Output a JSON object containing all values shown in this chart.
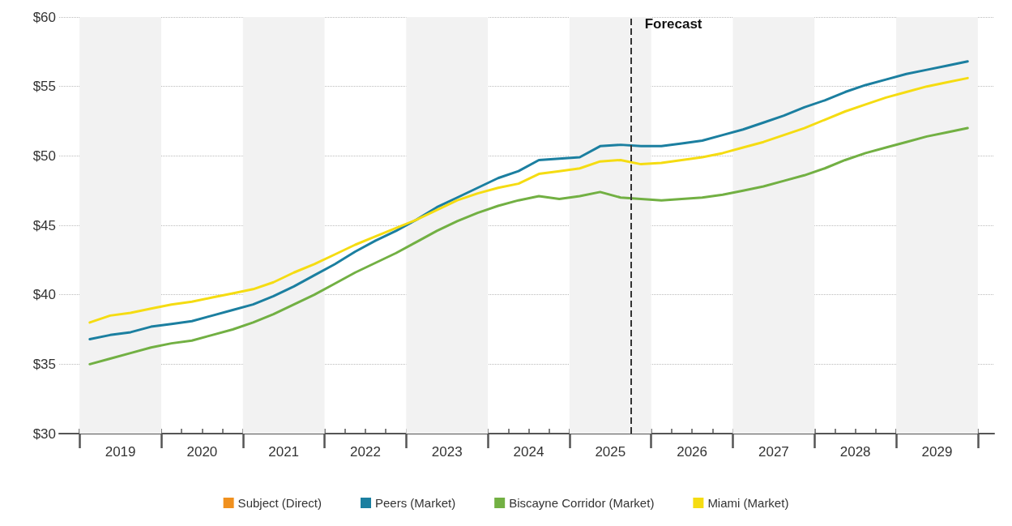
{
  "chart_data": {
    "type": "line",
    "x": [
      2019.125,
      2019.375,
      2019.625,
      2019.875,
      2020.125,
      2020.375,
      2020.625,
      2020.875,
      2021.125,
      2021.375,
      2021.625,
      2021.875,
      2022.125,
      2022.375,
      2022.625,
      2022.875,
      2023.125,
      2023.375,
      2023.625,
      2023.875,
      2024.125,
      2024.375,
      2024.625,
      2024.875,
      2025.125,
      2025.375,
      2025.625,
      2025.875,
      2026.125,
      2026.375,
      2026.625,
      2026.875,
      2027.125,
      2027.375,
      2027.625,
      2027.875,
      2028.125,
      2028.375,
      2028.625,
      2028.875,
      2029.125,
      2029.375,
      2029.625,
      2029.875
    ],
    "series": [
      {
        "name": "Subject (Direct)",
        "color": "#f0901e",
        "values": [
          null,
          null,
          null,
          null,
          null,
          null,
          null,
          null,
          null,
          null,
          null,
          null,
          null,
          null,
          null,
          null,
          null,
          null,
          null,
          null,
          null,
          null,
          null,
          null,
          null,
          null,
          null,
          null,
          null,
          null,
          null,
          null,
          null,
          null,
          null,
          null,
          null,
          null,
          null,
          null,
          null,
          null,
          null,
          null
        ]
      },
      {
        "name": "Peers (Market)",
        "color": "#1b7fa0",
        "values": [
          36.8,
          37.1,
          37.3,
          37.7,
          37.9,
          38.1,
          38.5,
          38.9,
          39.3,
          39.9,
          40.6,
          41.4,
          42.2,
          43.1,
          43.9,
          44.6,
          45.4,
          46.3,
          47.0,
          47.7,
          48.4,
          48.9,
          49.7,
          49.8,
          49.9,
          50.7,
          50.8,
          50.7,
          50.7,
          50.9,
          51.1,
          51.5,
          51.9,
          52.4,
          52.9,
          53.5,
          54.0,
          54.6,
          55.1,
          55.5,
          55.9,
          56.2,
          56.5,
          56.8
        ]
      },
      {
        "name": "Biscayne Corridor (Market)",
        "color": "#72b043",
        "values": [
          35.0,
          35.4,
          35.8,
          36.2,
          36.5,
          36.7,
          37.1,
          37.5,
          38.0,
          38.6,
          39.3,
          40.0,
          40.8,
          41.6,
          42.3,
          43.0,
          43.8,
          44.6,
          45.3,
          45.9,
          46.4,
          46.8,
          47.1,
          46.9,
          47.1,
          47.4,
          47.0,
          46.9,
          46.8,
          46.9,
          47.0,
          47.2,
          47.5,
          47.8,
          48.2,
          48.6,
          49.1,
          49.7,
          50.2,
          50.6,
          51.0,
          51.4,
          51.7,
          52.0
        ]
      },
      {
        "name": "Miami (Market)",
        "color": "#f5dc12",
        "values": [
          38.0,
          38.5,
          38.7,
          39.0,
          39.3,
          39.5,
          39.8,
          40.1,
          40.4,
          40.9,
          41.6,
          42.2,
          42.9,
          43.6,
          44.2,
          44.8,
          45.4,
          46.1,
          46.8,
          47.3,
          47.7,
          48.0,
          48.7,
          48.9,
          49.1,
          49.6,
          49.7,
          49.4,
          49.5,
          49.7,
          49.9,
          50.2,
          50.6,
          51.0,
          51.5,
          52.0,
          52.6,
          53.2,
          53.7,
          54.2,
          54.6,
          55.0,
          55.3,
          55.6
        ]
      }
    ],
    "xlim": [
      2018.75,
      2030.2
    ],
    "xticks": [
      {
        "value": 2019,
        "label": null
      },
      {
        "value": 2019.25,
        "label": null
      },
      {
        "value": 2019.5,
        "label": "2019"
      },
      {
        "value": 2019.75,
        "label": null
      },
      {
        "value": 2020,
        "label": null
      },
      {
        "value": 2020.25,
        "label": null
      },
      {
        "value": 2020.5,
        "label": "2020"
      },
      {
        "value": 2020.75,
        "label": null
      },
      {
        "value": 2021,
        "label": null
      },
      {
        "value": 2021.25,
        "label": null
      },
      {
        "value": 2021.5,
        "label": "2021"
      },
      {
        "value": 2021.75,
        "label": null
      },
      {
        "value": 2022,
        "label": null
      },
      {
        "value": 2022.25,
        "label": null
      },
      {
        "value": 2022.5,
        "label": "2022"
      },
      {
        "value": 2022.75,
        "label": null
      },
      {
        "value": 2023,
        "label": null
      },
      {
        "value": 2023.25,
        "label": null
      },
      {
        "value": 2023.5,
        "label": "2023"
      },
      {
        "value": 2023.75,
        "label": null
      },
      {
        "value": 2024,
        "label": null
      },
      {
        "value": 2024.25,
        "label": null
      },
      {
        "value": 2024.5,
        "label": "2024"
      },
      {
        "value": 2024.75,
        "label": null
      },
      {
        "value": 2025,
        "label": null
      },
      {
        "value": 2025.25,
        "label": null
      },
      {
        "value": 2025.5,
        "label": "2025"
      },
      {
        "value": 2025.75,
        "label": null
      },
      {
        "value": 2026,
        "label": null
      },
      {
        "value": 2026.25,
        "label": null
      },
      {
        "value": 2026.5,
        "label": "2026"
      },
      {
        "value": 2026.75,
        "label": null
      },
      {
        "value": 2027,
        "label": null
      },
      {
        "value": 2027.25,
        "label": null
      },
      {
        "value": 2027.5,
        "label": "2027"
      },
      {
        "value": 2027.75,
        "label": null
      },
      {
        "value": 2028,
        "label": null
      },
      {
        "value": 2028.25,
        "label": null
      },
      {
        "value": 2028.5,
        "label": "2028"
      },
      {
        "value": 2028.75,
        "label": null
      },
      {
        "value": 2029,
        "label": null
      },
      {
        "value": 2029.25,
        "label": null
      },
      {
        "value": 2029.5,
        "label": "2029"
      },
      {
        "value": 2029.75,
        "label": null
      },
      {
        "value": 2030,
        "label": null
      }
    ],
    "ylim": [
      30,
      60
    ],
    "yticks": [
      {
        "value": 30,
        "label": "$30"
      },
      {
        "value": 35,
        "label": "$35"
      },
      {
        "value": 40,
        "label": "$40"
      },
      {
        "value": 45,
        "label": "$45"
      },
      {
        "value": 50,
        "label": "$50"
      },
      {
        "value": 55,
        "label": "$55"
      },
      {
        "value": 60,
        "label": "$60"
      }
    ],
    "ref_lines": [
      {
        "axis": "x",
        "value": 2025.75,
        "label": "Forecast",
        "color": "#333333",
        "line_style": "dashed"
      }
    ],
    "bands": [
      {
        "axis": "x",
        "from": 2019,
        "to": 2020,
        "color": "#f2f2f2"
      },
      {
        "axis": "x",
        "from": 2021,
        "to": 2022,
        "color": "#f2f2f2"
      },
      {
        "axis": "x",
        "from": 2023,
        "to": 2024,
        "color": "#f2f2f2"
      },
      {
        "axis": "x",
        "from": 2025,
        "to": 2026,
        "color": "#f2f2f2"
      },
      {
        "axis": "x",
        "from": 2027,
        "to": 2028,
        "color": "#f2f2f2"
      },
      {
        "axis": "x",
        "from": 2029,
        "to": 2030,
        "color": "#f2f2f2"
      }
    ],
    "grid": "y",
    "legend": "bottom",
    "marker": "none",
    "line_style": "solid"
  }
}
